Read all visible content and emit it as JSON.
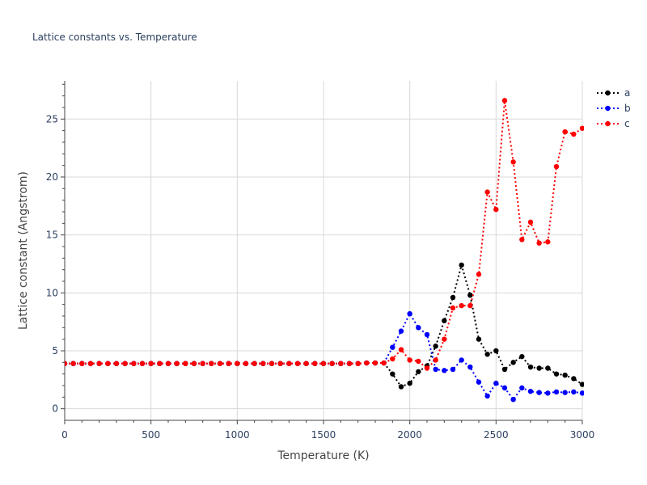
{
  "chart_data": {
    "type": "line",
    "title": "Lattice constants vs. Temperature",
    "xlabel": "Temperature (K)",
    "ylabel": "Lattice constant (Angstrom)",
    "xlim": [
      0,
      3000
    ],
    "ylim": [
      -1,
      28.3
    ],
    "x_ticks": [
      0,
      500,
      1000,
      1500,
      2000,
      2500,
      3000
    ],
    "y_ticks": [
      0,
      5,
      10,
      15,
      20,
      25
    ],
    "grid": true,
    "legend_position": "top-right",
    "x": [
      0,
      50,
      100,
      150,
      200,
      250,
      300,
      350,
      400,
      450,
      500,
      550,
      600,
      650,
      700,
      750,
      800,
      850,
      900,
      950,
      1000,
      1050,
      1100,
      1150,
      1200,
      1250,
      1300,
      1350,
      1400,
      1450,
      1500,
      1550,
      1600,
      1650,
      1700,
      1750,
      1800,
      1850,
      1900,
      1950,
      2000,
      2050,
      2100,
      2150,
      2200,
      2250,
      2300,
      2350,
      2400,
      2450,
      2500,
      2550,
      2600,
      2650,
      2700,
      2750,
      2800,
      2850,
      2900,
      2950,
      3000
    ],
    "series": [
      {
        "name": "a",
        "color": "#000000",
        "values": [
          3.9,
          3.9,
          3.9,
          3.9,
          3.9,
          3.9,
          3.9,
          3.9,
          3.9,
          3.9,
          3.9,
          3.9,
          3.9,
          3.9,
          3.9,
          3.9,
          3.9,
          3.9,
          3.9,
          3.9,
          3.9,
          3.9,
          3.9,
          3.9,
          3.9,
          3.9,
          3.9,
          3.9,
          3.9,
          3.9,
          3.9,
          3.9,
          3.9,
          3.9,
          3.9,
          3.95,
          3.95,
          3.95,
          3.0,
          1.9,
          2.2,
          3.2,
          3.7,
          5.4,
          7.6,
          9.6,
          12.4,
          9.8,
          6.0,
          4.7,
          5.0,
          3.4,
          4.0,
          4.5,
          3.6,
          3.5,
          3.5,
          3.0,
          2.9,
          2.6,
          2.1
        ]
      },
      {
        "name": "b",
        "color": "#0000ff",
        "values": [
          3.9,
          3.9,
          3.9,
          3.9,
          3.9,
          3.9,
          3.9,
          3.9,
          3.9,
          3.9,
          3.9,
          3.9,
          3.9,
          3.9,
          3.9,
          3.9,
          3.9,
          3.9,
          3.9,
          3.9,
          3.9,
          3.9,
          3.9,
          3.9,
          3.9,
          3.9,
          3.9,
          3.9,
          3.9,
          3.9,
          3.9,
          3.9,
          3.9,
          3.9,
          3.9,
          3.95,
          3.95,
          3.95,
          5.3,
          6.7,
          8.2,
          7.0,
          6.4,
          3.4,
          3.3,
          3.4,
          4.2,
          3.6,
          2.3,
          1.1,
          2.2,
          1.8,
          0.8,
          1.8,
          1.5,
          1.4,
          1.35,
          1.45,
          1.4,
          1.45,
          1.35
        ]
      },
      {
        "name": "c",
        "color": "#ff0000",
        "values": [
          3.9,
          3.9,
          3.9,
          3.9,
          3.9,
          3.9,
          3.9,
          3.9,
          3.9,
          3.9,
          3.9,
          3.9,
          3.9,
          3.9,
          3.9,
          3.9,
          3.9,
          3.9,
          3.9,
          3.9,
          3.9,
          3.9,
          3.9,
          3.9,
          3.9,
          3.9,
          3.9,
          3.9,
          3.9,
          3.9,
          3.9,
          3.9,
          3.9,
          3.9,
          3.9,
          3.95,
          3.95,
          3.95,
          4.3,
          5.1,
          4.2,
          4.1,
          3.5,
          4.2,
          6.0,
          8.7,
          8.9,
          8.9,
          11.6,
          18.7,
          17.2,
          26.6,
          21.3,
          14.6,
          16.1,
          14.3,
          14.4,
          20.9,
          23.9,
          23.7,
          24.2
        ]
      }
    ]
  }
}
